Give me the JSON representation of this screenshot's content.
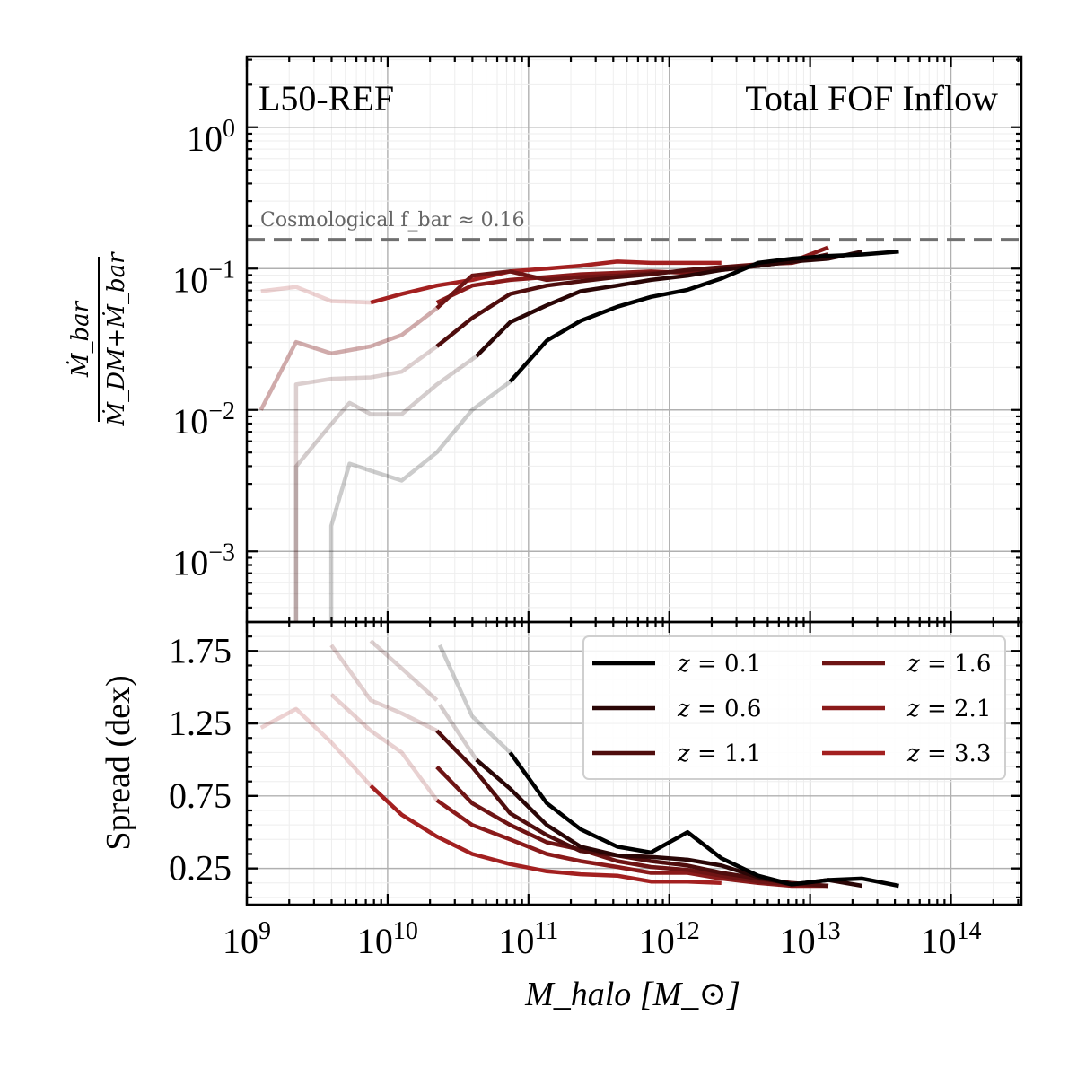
{
  "chart_data": {
    "type": "line",
    "panels": [
      {
        "id": "top",
        "ylabel_num": "Ṁ_bar",
        "ylabel_den": "Ṁ_DM+Ṁ_bar",
        "yscale": "log",
        "ylim_exp": [
          -3.5,
          0.5
        ],
        "ytick_labels": [
          "10^0",
          "10^-1",
          "10^-2",
          "10^-3"
        ],
        "yticks_exp": [
          0,
          -1,
          -2,
          -3
        ],
        "annotations": {
          "left": "L50-REF",
          "right": "Total FOF Inflow",
          "reference_line": "Cosmological f_bar ≈ 0.16",
          "reference_value": 0.16
        }
      },
      {
        "id": "bottom",
        "ylabel": "Spread (dex)",
        "yscale": "linear",
        "ylim": [
          0.0,
          1.95
        ],
        "yticks": [
          0.25,
          0.75,
          1.25,
          1.75
        ],
        "ytick_labels": [
          "0.25",
          "0.75",
          "1.25",
          "1.75"
        ]
      }
    ],
    "xlabel": "M_halo [M_⊙]",
    "xscale": "log",
    "xlim_exp": [
      9,
      14.5
    ],
    "xticks_exp": [
      9,
      10,
      11,
      12,
      13,
      14
    ],
    "xtick_labels": [
      "10^9",
      "10^10",
      "10^11",
      "10^12",
      "10^13",
      "10^14"
    ],
    "legend": {
      "placement": "upper-right of bottom panel",
      "columns": 2
    },
    "series": [
      {
        "name": "z = 0.1",
        "z_label": "0.1",
        "color": "#000000",
        "faded": {
          "ratio": [
            [
              9.6,
              -4.0
            ],
            [
              9.6,
              -2.82
            ],
            [
              9.73,
              -2.38
            ],
            [
              9.88,
              -2.43
            ],
            [
              10.1,
              -2.5
            ],
            [
              10.35,
              -2.3
            ],
            [
              10.6,
              -2.0
            ],
            [
              10.87,
              -1.8
            ]
          ],
          "spread": [
            [
              10.37,
              1.79
            ],
            [
              10.6,
              1.3
            ],
            [
              10.87,
              1.05
            ]
          ]
        },
        "solid": {
          "ratio": [
            [
              10.87,
              -1.8
            ],
            [
              11.13,
              -1.51
            ],
            [
              11.37,
              -1.37
            ],
            [
              11.63,
              -1.27
            ],
            [
              11.87,
              -1.2
            ],
            [
              12.13,
              -1.15
            ],
            [
              12.37,
              -1.07
            ],
            [
              12.63,
              -0.96
            ],
            [
              12.87,
              -0.93
            ],
            [
              13.13,
              -0.91
            ],
            [
              13.37,
              -0.9
            ],
            [
              13.63,
              -0.88
            ]
          ],
          "spread": [
            [
              10.87,
              1.05
            ],
            [
              11.13,
              0.7
            ],
            [
              11.37,
              0.52
            ],
            [
              11.63,
              0.4
            ],
            [
              11.87,
              0.36
            ],
            [
              12.13,
              0.5
            ],
            [
              12.37,
              0.32
            ],
            [
              12.63,
              0.2
            ],
            [
              12.87,
              0.14
            ],
            [
              13.13,
              0.17
            ],
            [
              13.37,
              0.18
            ],
            [
              13.63,
              0.13
            ]
          ]
        }
      },
      {
        "name": "z = 0.6",
        "z_label": "0.6",
        "color": "#2a0606",
        "faded": {
          "ratio": [
            [
              9.35,
              -4.0
            ],
            [
              9.35,
              -2.4
            ],
            [
              9.6,
              -2.1
            ],
            [
              9.73,
              -1.95
            ],
            [
              9.88,
              -2.03
            ],
            [
              10.1,
              -2.03
            ],
            [
              10.35,
              -1.82
            ],
            [
              10.63,
              -1.62
            ]
          ],
          "spread": [
            [
              10.37,
              1.38
            ],
            [
              10.63,
              1.0
            ]
          ]
        },
        "solid": {
          "ratio": [
            [
              10.63,
              -1.62
            ],
            [
              10.87,
              -1.38
            ],
            [
              11.13,
              -1.26
            ],
            [
              11.37,
              -1.16
            ],
            [
              11.63,
              -1.12
            ],
            [
              11.87,
              -1.08
            ],
            [
              12.13,
              -1.05
            ],
            [
              12.37,
              -1.01
            ],
            [
              12.63,
              -0.98
            ],
            [
              12.87,
              -0.95
            ],
            [
              13.13,
              -0.93
            ],
            [
              13.37,
              -0.88
            ]
          ],
          "spread": [
            [
              10.63,
              1.0
            ],
            [
              10.87,
              0.8
            ],
            [
              11.13,
              0.55
            ],
            [
              11.37,
              0.4
            ],
            [
              11.63,
              0.34
            ],
            [
              11.87,
              0.33
            ],
            [
              12.13,
              0.31
            ],
            [
              12.37,
              0.27
            ],
            [
              12.63,
              0.19
            ],
            [
              12.87,
              0.14
            ],
            [
              13.13,
              0.17
            ],
            [
              13.37,
              0.13
            ]
          ]
        }
      },
      {
        "name": "z = 1.1",
        "z_label": "1.1",
        "color": "#4f0d0d",
        "faded": {
          "ratio": [
            [
              9.35,
              -4.0
            ],
            [
              9.35,
              -1.82
            ],
            [
              9.6,
              -1.78
            ],
            [
              9.88,
              -1.77
            ],
            [
              10.1,
              -1.73
            ],
            [
              10.35,
              -1.55
            ]
          ],
          "spread": [
            [
              9.88,
              1.82
            ],
            [
              10.1,
              1.63
            ],
            [
              10.35,
              1.41
            ]
          ]
        },
        "solid": {
          "ratio": [
            [
              10.35,
              -1.55
            ],
            [
              10.6,
              -1.35
            ],
            [
              10.87,
              -1.18
            ],
            [
              11.13,
              -1.12
            ],
            [
              11.37,
              -1.09
            ],
            [
              11.63,
              -1.06
            ],
            [
              11.87,
              -1.04
            ],
            [
              12.13,
              -1.01
            ],
            [
              12.37,
              -0.99
            ],
            [
              12.63,
              -0.98
            ],
            [
              12.87,
              -0.95
            ],
            [
              13.13,
              -0.9
            ]
          ],
          "spread": [
            [
              10.35,
              1.2
            ],
            [
              10.6,
              0.95
            ],
            [
              10.87,
              0.63
            ],
            [
              11.13,
              0.48
            ],
            [
              11.37,
              0.37
            ],
            [
              11.63,
              0.34
            ],
            [
              11.87,
              0.3
            ],
            [
              12.13,
              0.27
            ],
            [
              12.37,
              0.22
            ],
            [
              12.63,
              0.18
            ],
            [
              12.87,
              0.15
            ],
            [
              13.13,
              0.13
            ]
          ]
        }
      },
      {
        "name": "z = 1.6",
        "z_label": "1.6",
        "color": "#6e1414",
        "faded": {
          "ratio": [
            [
              9.1,
              -2.0
            ],
            [
              9.35,
              -1.52
            ],
            [
              9.6,
              -1.6
            ],
            [
              9.88,
              -1.55
            ],
            [
              10.1,
              -1.47
            ],
            [
              10.35,
              -1.28
            ]
          ],
          "spread": [
            [
              9.6,
              1.79
            ],
            [
              9.88,
              1.41
            ],
            [
              10.1,
              1.32
            ],
            [
              10.35,
              1.2
            ]
          ]
        },
        "solid": {
          "ratio": [
            [
              10.35,
              -1.28
            ],
            [
              10.6,
              -1.05
            ],
            [
              10.87,
              -1.02
            ],
            [
              11.13,
              -1.08
            ],
            [
              11.37,
              -1.06
            ],
            [
              11.63,
              -1.05
            ],
            [
              11.87,
              -1.03
            ],
            [
              12.13,
              -1.02
            ],
            [
              12.37,
              -0.99
            ],
            [
              12.63,
              -0.97
            ],
            [
              12.87,
              -0.96
            ],
            [
              13.13,
              -0.9
            ]
          ],
          "spread": [
            [
              10.35,
              0.95
            ],
            [
              10.6,
              0.7
            ],
            [
              10.87,
              0.55
            ],
            [
              11.13,
              0.43
            ],
            [
              11.37,
              0.38
            ],
            [
              11.63,
              0.3
            ],
            [
              11.87,
              0.26
            ],
            [
              12.13,
              0.24
            ],
            [
              12.37,
              0.2
            ],
            [
              12.63,
              0.16
            ],
            [
              12.87,
              0.14
            ],
            [
              13.13,
              0.13
            ]
          ]
        }
      },
      {
        "name": "z = 2.1",
        "z_label": "2.1",
        "color": "#8a1a1a",
        "faded": {
          "ratio": [
            [
              9.1,
              -2.0
            ],
            [
              9.35,
              -1.52
            ],
            [
              9.6,
              -1.6
            ],
            [
              9.88,
              -1.55
            ],
            [
              10.1,
              -1.47
            ],
            [
              10.35,
              -1.28
            ]
          ],
          "spread": [
            [
              9.6,
              1.45
            ],
            [
              9.88,
              1.2
            ],
            [
              10.1,
              1.05
            ],
            [
              10.35,
              0.72
            ]
          ]
        },
        "solid": {
          "ratio": [
            [
              10.35,
              -1.24
            ],
            [
              10.6,
              -1.12
            ],
            [
              10.87,
              -1.08
            ],
            [
              11.13,
              -1.06
            ],
            [
              11.37,
              -1.04
            ],
            [
              11.63,
              -1.03
            ],
            [
              11.87,
              -1.02
            ],
            [
              12.13,
              -1.03
            ],
            [
              12.37,
              -1.01
            ],
            [
              12.63,
              -0.98
            ],
            [
              12.87,
              -0.95
            ],
            [
              13.13,
              -0.85
            ]
          ],
          "spread": [
            [
              10.35,
              0.72
            ],
            [
              10.6,
              0.55
            ],
            [
              10.87,
              0.45
            ],
            [
              11.13,
              0.35
            ],
            [
              11.37,
              0.3
            ],
            [
              11.63,
              0.26
            ],
            [
              11.87,
              0.22
            ],
            [
              12.13,
              0.22
            ],
            [
              12.37,
              0.18
            ],
            [
              12.63,
              0.15
            ],
            [
              12.87,
              0.13
            ],
            [
              13.13,
              0.13
            ]
          ]
        }
      },
      {
        "name": "z = 3.3",
        "z_label": "3.3",
        "color": "#a32020",
        "faded": {
          "ratio": [
            [
              9.1,
              -1.16
            ],
            [
              9.35,
              -1.13
            ],
            [
              9.6,
              -1.23
            ],
            [
              9.88,
              -1.24
            ]
          ],
          "spread": [
            [
              9.1,
              1.22
            ],
            [
              9.35,
              1.35
            ],
            [
              9.6,
              1.12
            ],
            [
              9.88,
              0.82
            ]
          ]
        },
        "solid": {
          "ratio": [
            [
              9.88,
              -1.24
            ],
            [
              10.1,
              -1.18
            ],
            [
              10.35,
              -1.12
            ],
            [
              10.6,
              -1.08
            ],
            [
              10.87,
              -1.02
            ],
            [
              11.13,
              -1.0
            ],
            [
              11.37,
              -0.98
            ],
            [
              11.63,
              -0.95
            ],
            [
              11.87,
              -0.96
            ],
            [
              12.13,
              -0.96
            ],
            [
              12.37,
              -0.96
            ]
          ],
          "spread": [
            [
              9.88,
              0.82
            ],
            [
              10.1,
              0.62
            ],
            [
              10.35,
              0.47
            ],
            [
              10.6,
              0.35
            ],
            [
              10.87,
              0.28
            ],
            [
              11.13,
              0.23
            ],
            [
              11.37,
              0.21
            ],
            [
              11.63,
              0.2
            ],
            [
              11.87,
              0.16
            ],
            [
              12.13,
              0.16
            ],
            [
              12.37,
              0.15
            ]
          ]
        }
      }
    ]
  }
}
